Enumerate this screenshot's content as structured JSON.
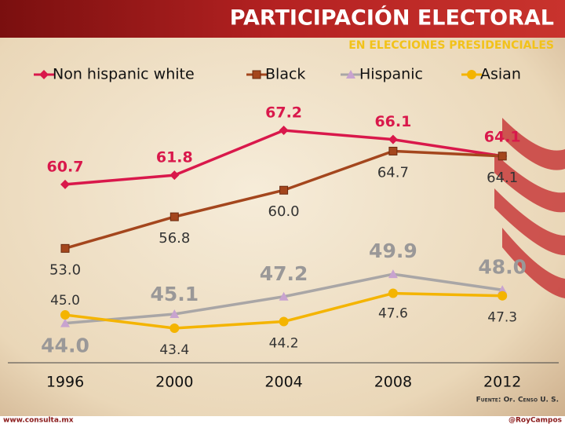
{
  "chart_data": {
    "type": "line",
    "title": "PARTICIPACIÓN ELECTORAL",
    "subtitle": "EN ELECCIONES PRESIDENCIALES",
    "source": "Fuente: Of. Censo U. S.",
    "footer_left": "www.consulta.mx",
    "footer_right": "@RoyCampos",
    "categories": [
      "1996",
      "2000",
      "2004",
      "2008",
      "2012"
    ],
    "series": [
      {
        "name": "Non hispanic white",
        "color": "#d9184b",
        "values": [
          60.7,
          61.8,
          67.2,
          66.1,
          64.1
        ],
        "value_labels": [
          "60.7",
          "61.8",
          "67.2",
          "66.1",
          "64.1"
        ]
      },
      {
        "name": "Black",
        "color": "#a4461d",
        "values": [
          53.0,
          56.8,
          60.0,
          64.7,
          64.1
        ],
        "value_labels": [
          "53.0",
          "56.8",
          "60.0",
          "64.7",
          "64.1"
        ]
      },
      {
        "name": "Hispanic",
        "color": "#a9a6a6",
        "values": [
          44.0,
          45.1,
          47.2,
          49.9,
          48.0
        ],
        "value_labels": [
          "44.0",
          "45.1",
          "47.2",
          "49.9",
          "48.0"
        ]
      },
      {
        "name": "Asian",
        "color": "#f4b400",
        "values": [
          45.0,
          43.4,
          44.2,
          47.6,
          47.3
        ],
        "value_labels": [
          "45.0",
          "43.4",
          "44.2",
          "47.6",
          "47.3"
        ]
      }
    ]
  }
}
